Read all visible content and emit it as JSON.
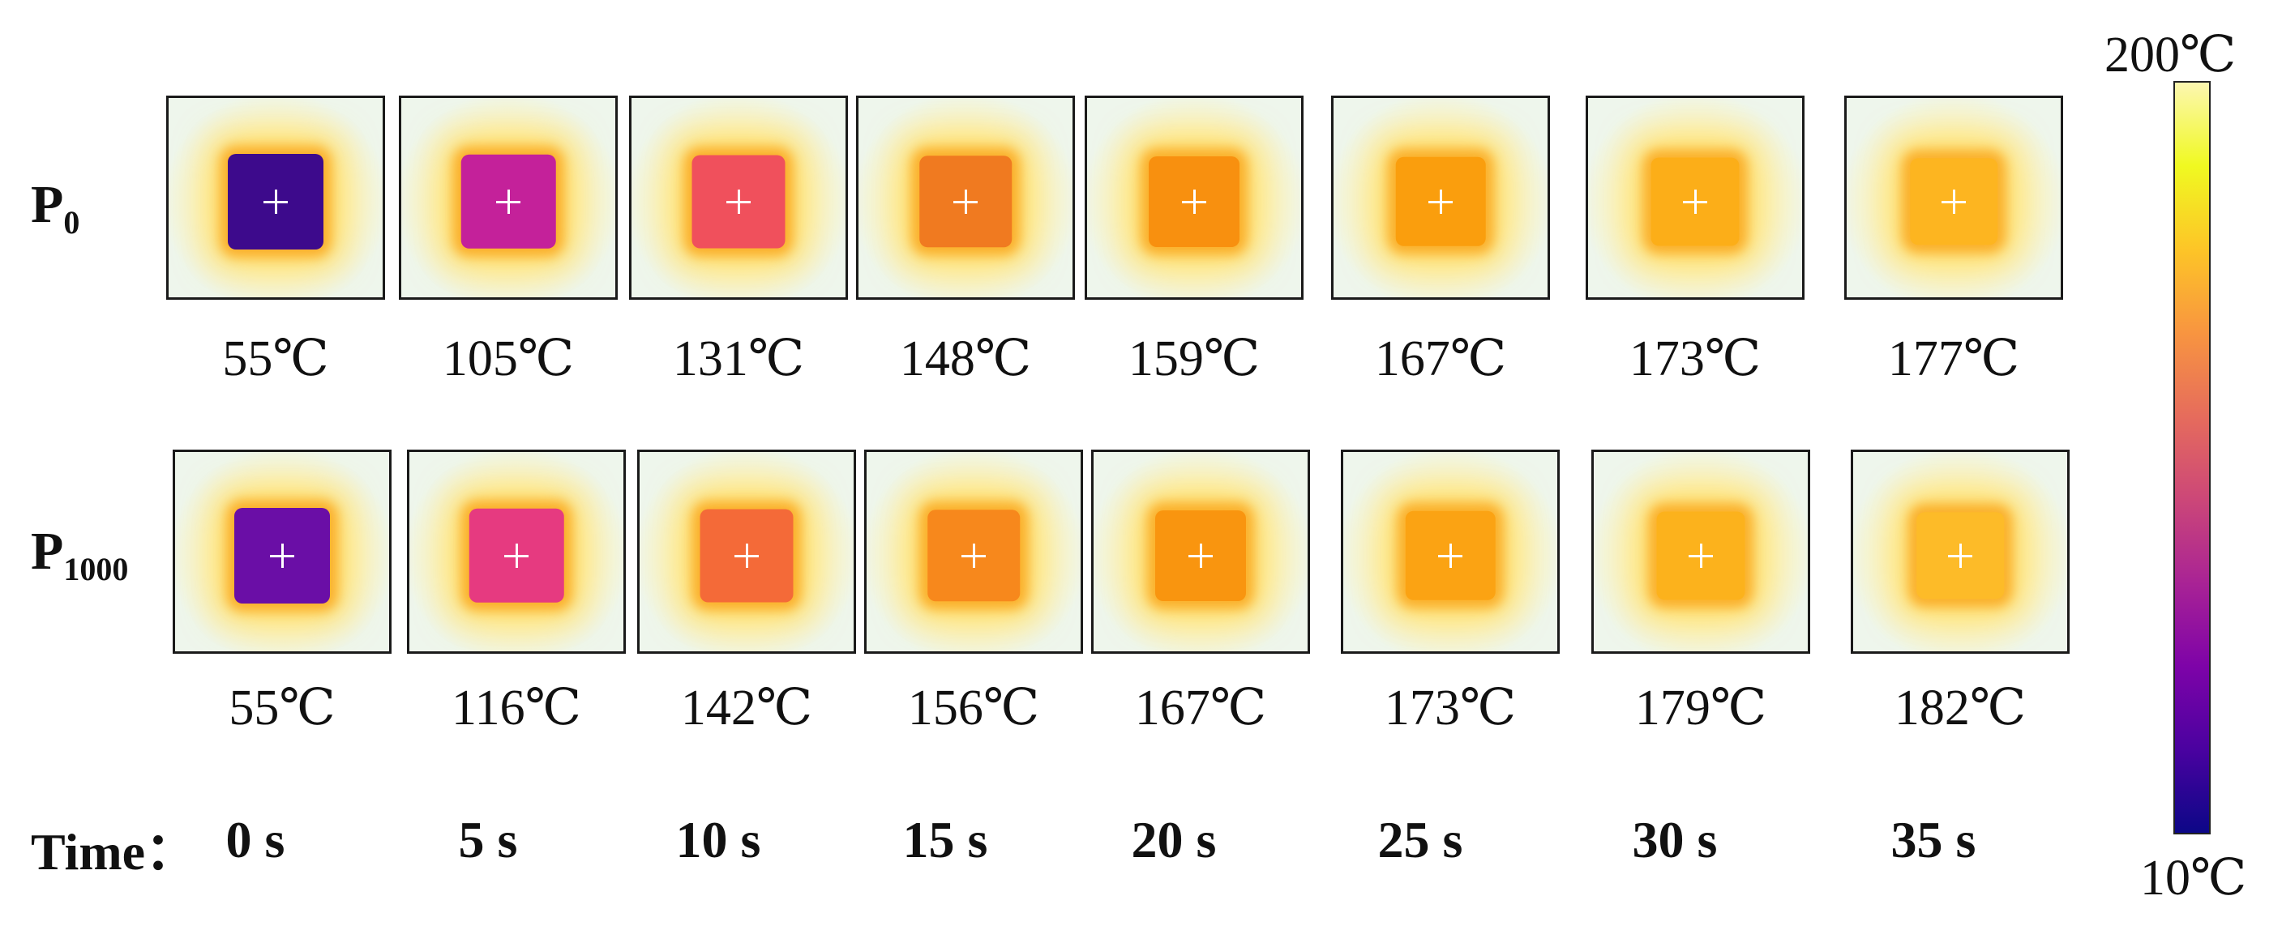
{
  "rows": [
    {
      "label_main": "P",
      "label_sub": "0",
      "temperatures": [
        "55℃",
        "105℃",
        "131℃",
        "148℃",
        "159℃",
        "167℃",
        "173℃",
        "177℃"
      ],
      "frame_colors": [
        "#3d0a8c",
        "#c4219a",
        "#f0505c",
        "#f07a20",
        "#f8900f",
        "#fa9e0d",
        "#fcae18",
        "#fdb520"
      ]
    },
    {
      "label_main": "P",
      "label_sub": "1000",
      "temperatures": [
        "55℃",
        "116℃",
        "142℃",
        "156℃",
        "167℃",
        "173℃",
        "179℃",
        "182℃"
      ],
      "frame_colors": [
        "#6a0ea6",
        "#e63a80",
        "#f46a38",
        "#f7881c",
        "#f9950f",
        "#fba313",
        "#fcb21c",
        "#fdbb28"
      ]
    }
  ],
  "time": {
    "label": "Time：",
    "values": [
      "0 s",
      "5 s",
      "10 s",
      "15 s",
      "20 s",
      "25 s",
      "30 s",
      "35 s"
    ]
  },
  "colorbar": {
    "max_label": "200℃",
    "min_label": "10℃",
    "gradient_stops": [
      "#0c0787",
      "#4a02a0",
      "#7e03a8",
      "#a92395",
      "#cc4778",
      "#e66c5c",
      "#f89540",
      "#fdc527",
      "#f0f921",
      "#fcf7b0"
    ]
  },
  "background_color": "#eef6ec"
}
